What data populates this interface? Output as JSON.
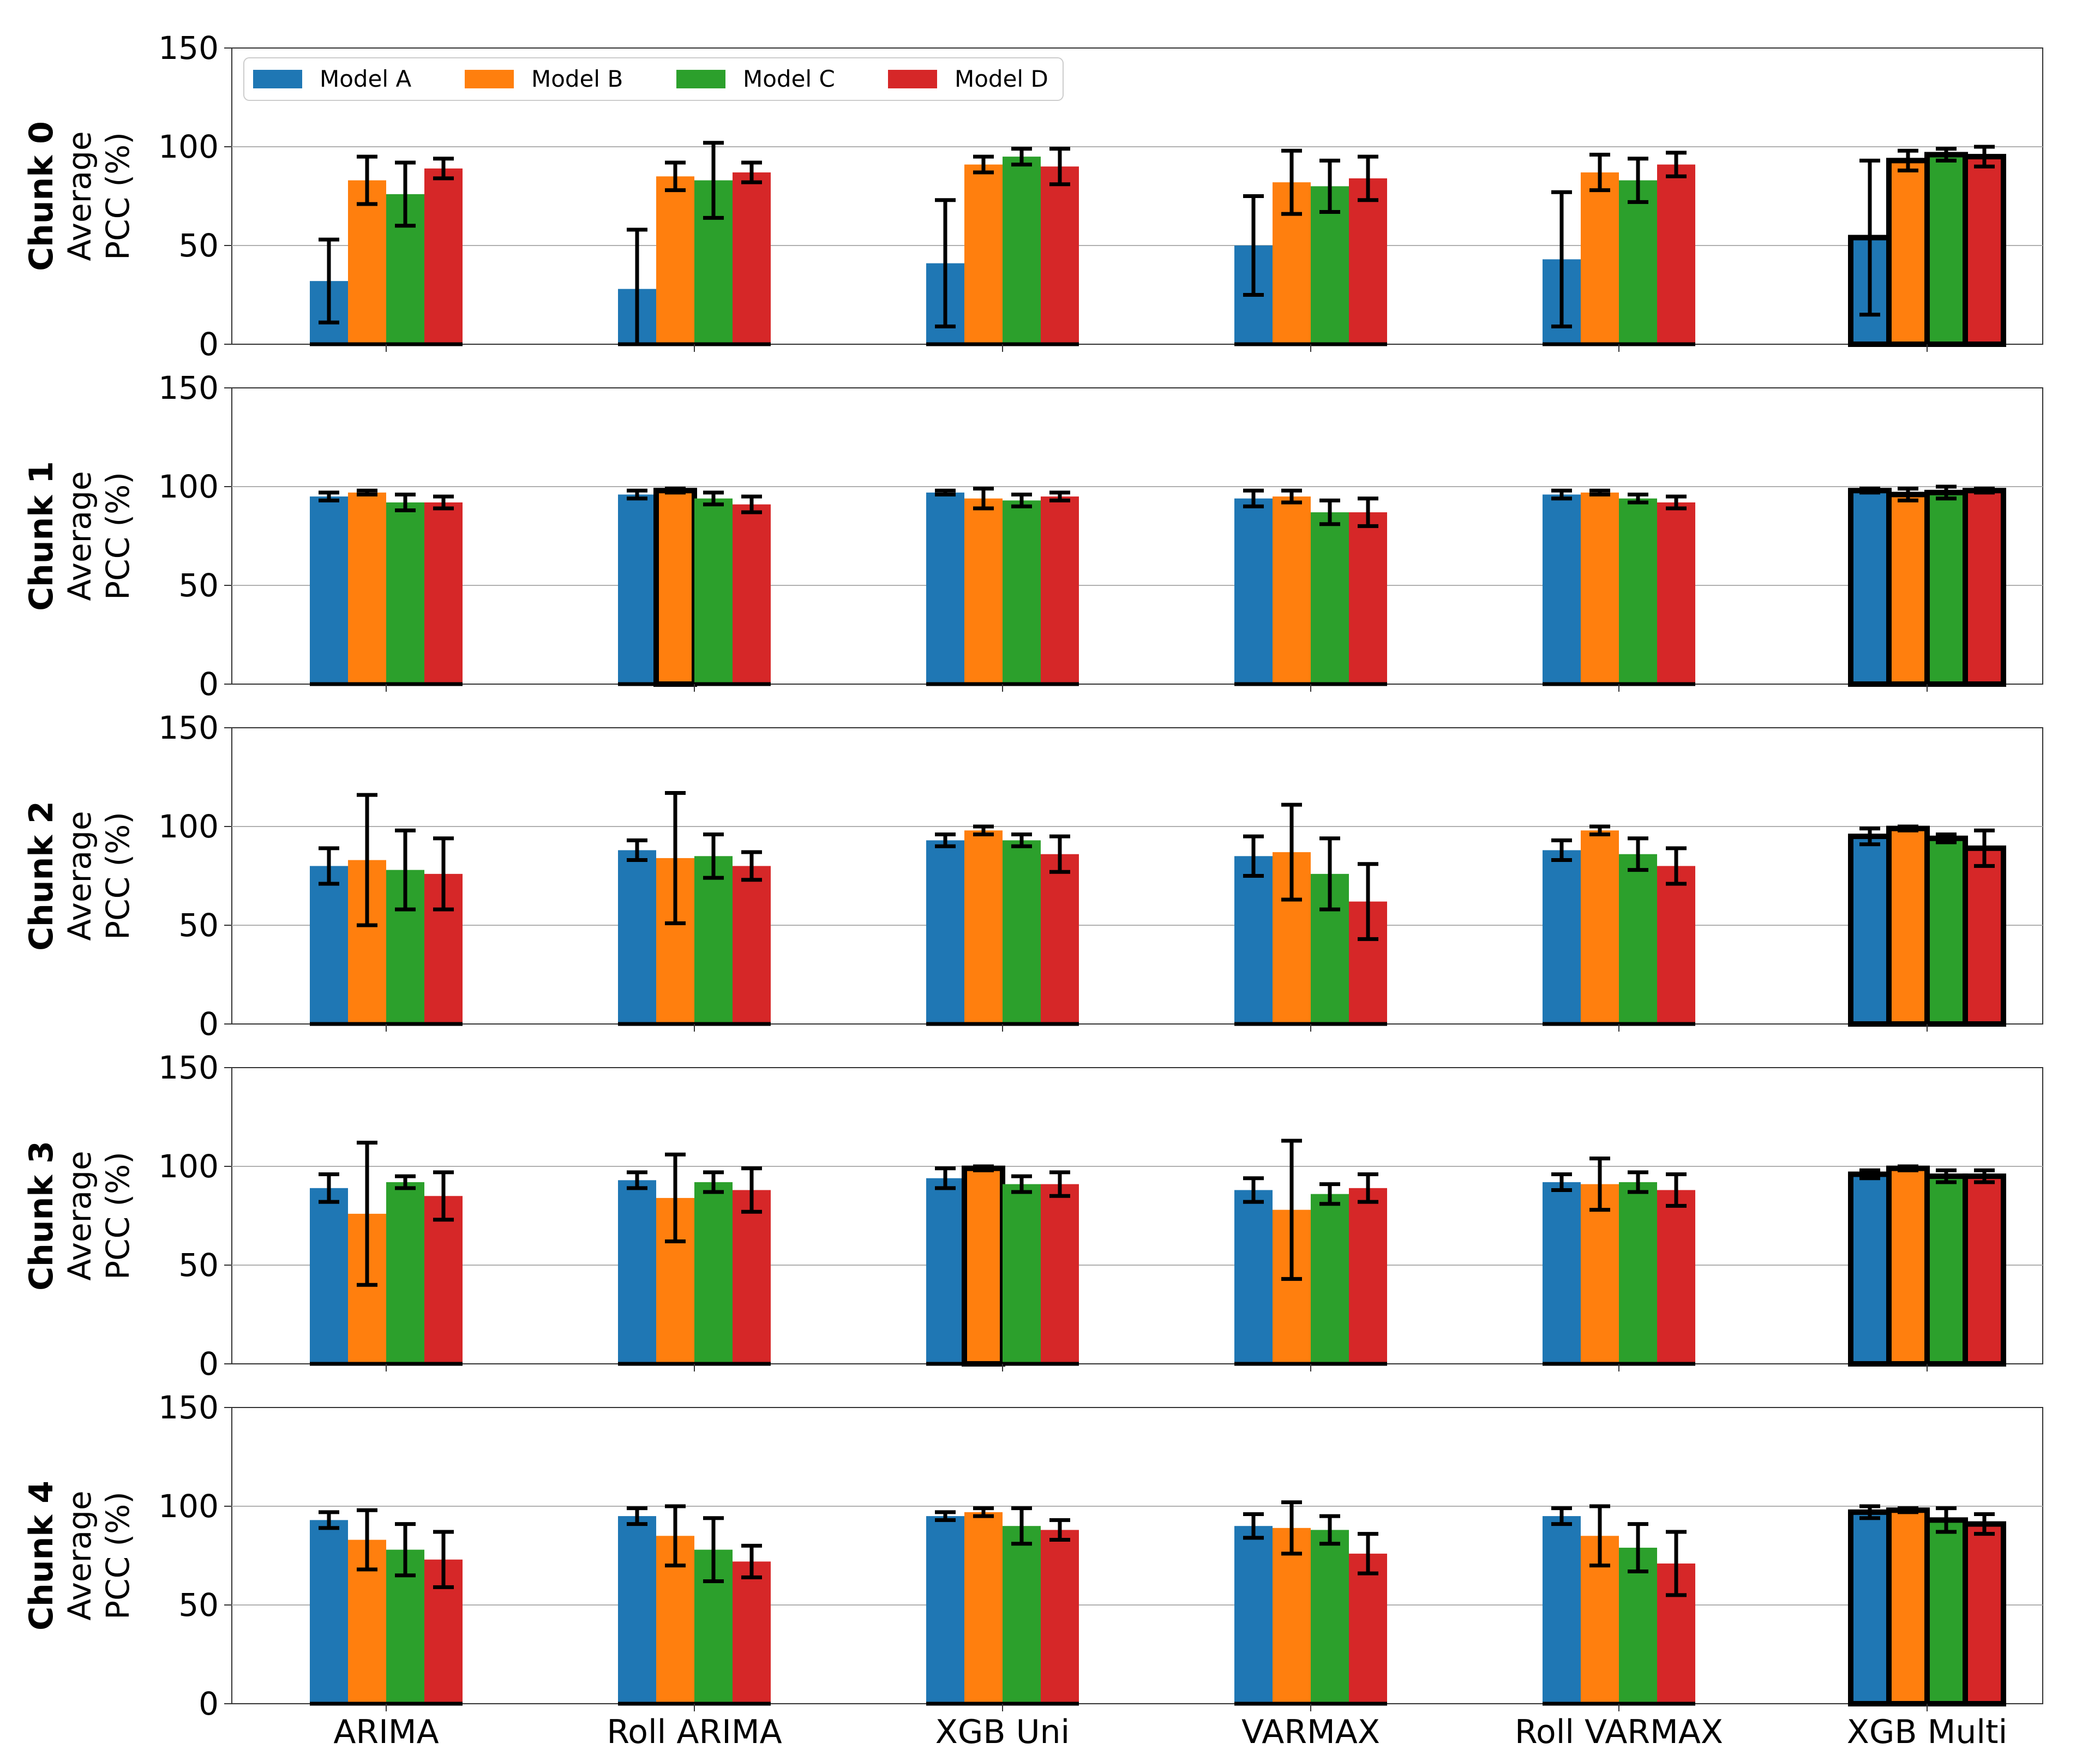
{
  "chart_data": {
    "type": "bar",
    "categories": [
      "ARIMA",
      "Roll ARIMA",
      "XGB Uni",
      "VARMAX",
      "Roll VARMAX",
      "XGB Multi"
    ],
    "legend": [
      "Model A",
      "Model B",
      "Model C",
      "Model D"
    ],
    "legend_position": "top-left",
    "colors": [
      "#1f77b4",
      "#ff7f0e",
      "#2ca02c",
      "#d62728"
    ],
    "ylim": [
      0,
      150
    ],
    "yticks": [
      "0",
      "50",
      "100",
      "150"
    ],
    "ylabel_line1": "Average",
    "ylabel_line2": "PCC (%)",
    "grid": "horizontal",
    "highlight_note": "thick black outline marks best model per chunk",
    "panels": [
      {
        "label": "Chunk 0",
        "values": [
          [
            32,
            83,
            76,
            89
          ],
          [
            28,
            85,
            83,
            87
          ],
          [
            41,
            91,
            95,
            90
          ],
          [
            50,
            82,
            80,
            84
          ],
          [
            43,
            87,
            83,
            91
          ],
          [
            54,
            93,
            96,
            95
          ]
        ],
        "errors": [
          [
            21,
            12,
            16,
            5
          ],
          [
            30,
            7,
            19,
            5
          ],
          [
            32,
            4,
            4,
            9
          ],
          [
            25,
            16,
            13,
            11
          ],
          [
            34,
            9,
            11,
            6
          ],
          [
            39,
            5,
            3,
            5
          ]
        ],
        "highlight": [
          [],
          [],
          [],
          [],
          [],
          [
            0,
            1,
            2,
            3
          ]
        ]
      },
      {
        "label": "Chunk 1",
        "values": [
          [
            95,
            97,
            92,
            92
          ],
          [
            96,
            98,
            94,
            91
          ],
          [
            97,
            94,
            93,
            95
          ],
          [
            94,
            95,
            87,
            87
          ],
          [
            96,
            97,
            94,
            92
          ],
          [
            98,
            96,
            97,
            98
          ]
        ],
        "errors": [
          [
            2,
            1,
            4,
            3
          ],
          [
            2,
            1,
            3,
            4
          ],
          [
            1,
            5,
            3,
            2
          ],
          [
            4,
            3,
            6,
            7
          ],
          [
            2,
            1,
            2,
            3
          ],
          [
            1,
            3,
            3,
            1
          ]
        ],
        "highlight": [
          [],
          [
            1
          ],
          [],
          [],
          [],
          [
            0,
            1,
            2,
            3
          ]
        ]
      },
      {
        "label": "Chunk 2",
        "values": [
          [
            80,
            83,
            78,
            76
          ],
          [
            88,
            84,
            85,
            80
          ],
          [
            93,
            98,
            93,
            86
          ],
          [
            85,
            87,
            76,
            62
          ],
          [
            88,
            98,
            86,
            80
          ],
          [
            95,
            99,
            94,
            89
          ]
        ],
        "errors": [
          [
            9,
            33,
            20,
            18
          ],
          [
            5,
            33,
            11,
            7
          ],
          [
            3,
            2,
            3,
            9
          ],
          [
            10,
            24,
            18,
            19
          ],
          [
            5,
            2,
            8,
            9
          ],
          [
            4,
            1,
            2,
            9
          ]
        ],
        "highlight": [
          [],
          [],
          [],
          [],
          [],
          [
            0,
            1,
            2,
            3
          ]
        ]
      },
      {
        "label": "Chunk 3",
        "values": [
          [
            89,
            76,
            92,
            85
          ],
          [
            93,
            84,
            92,
            88
          ],
          [
            94,
            99,
            91,
            91
          ],
          [
            88,
            78,
            86,
            89
          ],
          [
            92,
            91,
            92,
            88
          ],
          [
            96,
            99,
            95,
            95
          ]
        ],
        "errors": [
          [
            7,
            36,
            3,
            12
          ],
          [
            4,
            22,
            5,
            11
          ],
          [
            5,
            1,
            4,
            6
          ],
          [
            6,
            35,
            5,
            7
          ],
          [
            4,
            13,
            5,
            8
          ],
          [
            2,
            1,
            3,
            3
          ]
        ],
        "highlight": [
          [],
          [],
          [
            1
          ],
          [],
          [],
          [
            0,
            1,
            2,
            3
          ]
        ]
      },
      {
        "label": "Chunk 4",
        "values": [
          [
            93,
            83,
            78,
            73
          ],
          [
            95,
            85,
            78,
            72
          ],
          [
            95,
            97,
            90,
            88
          ],
          [
            90,
            89,
            88,
            76
          ],
          [
            95,
            85,
            79,
            71
          ],
          [
            97,
            98,
            93,
            91
          ]
        ],
        "errors": [
          [
            4,
            15,
            13,
            14
          ],
          [
            4,
            15,
            16,
            8
          ],
          [
            2,
            2,
            9,
            5
          ],
          [
            6,
            13,
            7,
            10
          ],
          [
            4,
            15,
            12,
            16
          ],
          [
            3,
            1,
            6,
            5
          ]
        ],
        "highlight": [
          [],
          [],
          [],
          [],
          [],
          [
            0,
            1,
            2,
            3
          ]
        ]
      }
    ]
  }
}
